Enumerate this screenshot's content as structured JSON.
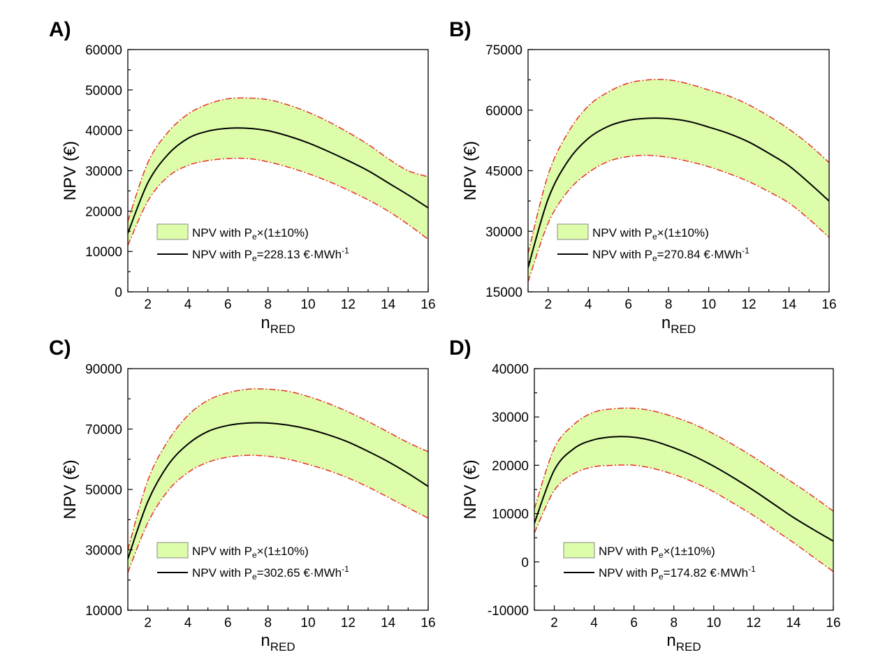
{
  "chart_data": [
    {
      "panel_label": "A)",
      "type": "line",
      "xlabel_main": "n",
      "xlabel_sub": "RED",
      "ylabel": "NPV (€)",
      "xlim": [
        1,
        16
      ],
      "ylim": [
        0,
        60000
      ],
      "xticks": [
        2,
        4,
        6,
        8,
        10,
        12,
        14,
        16
      ],
      "yticks": [
        0,
        10000,
        20000,
        30000,
        40000,
        50000,
        60000
      ],
      "x": [
        1,
        2,
        3,
        4,
        5,
        6,
        7,
        8,
        9,
        10,
        11,
        12,
        13,
        14,
        15,
        16
      ],
      "series": [
        {
          "name": "NPV with Pe=228.13 €·MWh-1",
          "values": [
            14500,
            27000,
            34000,
            38000,
            39800,
            40500,
            40500,
            39900,
            38600,
            36900,
            34800,
            32500,
            30000,
            27000,
            24000,
            20800
          ]
        },
        {
          "name": "upper",
          "values": [
            17500,
            32000,
            39500,
            44000,
            46500,
            47800,
            48000,
            47600,
            46300,
            44500,
            42200,
            39500,
            36500,
            33000,
            30000,
            28500
          ]
        },
        {
          "name": "lower",
          "values": [
            11500,
            22500,
            28500,
            31300,
            32500,
            33000,
            33000,
            32200,
            30900,
            29300,
            27400,
            25200,
            22800,
            20000,
            16700,
            13000
          ]
        }
      ],
      "legend": {
        "band_prefix": "NPV with P",
        "band_sub": "e",
        "band_suffix": "×(1±10%)",
        "line_prefix": "NPV with P",
        "line_sub": "e",
        "line_value": "=228.13 €·MWh",
        "line_sup": "-1"
      }
    },
    {
      "panel_label": "B)",
      "type": "line",
      "xlabel_main": "n",
      "xlabel_sub": "RED",
      "ylabel": "NPV (€)",
      "xlim": [
        1,
        16
      ],
      "ylim": [
        15000,
        75000
      ],
      "xticks": [
        2,
        4,
        6,
        8,
        10,
        12,
        14,
        16
      ],
      "yticks": [
        15000,
        30000,
        45000,
        60000,
        75000
      ],
      "x": [
        1,
        2,
        3,
        4,
        5,
        6,
        7,
        8,
        9,
        10,
        11,
        12,
        13,
        14,
        15,
        16
      ],
      "series": [
        {
          "name": "NPV with Pe=270.84 €·MWh-1",
          "values": [
            21000,
            38000,
            47500,
            53000,
            56000,
            57500,
            58000,
            57900,
            57200,
            55800,
            54200,
            52100,
            49300,
            46200,
            42000,
            37500
          ]
        },
        {
          "name": "upper",
          "values": [
            24500,
            44000,
            54500,
            61000,
            64500,
            66700,
            67500,
            67500,
            66500,
            65000,
            63500,
            61300,
            58500,
            55300,
            51500,
            47000
          ]
        },
        {
          "name": "lower",
          "values": [
            17500,
            32000,
            40000,
            44500,
            47300,
            48500,
            48800,
            48300,
            47300,
            46000,
            44300,
            42300,
            39800,
            37000,
            33000,
            28500
          ]
        }
      ],
      "legend": {
        "band_prefix": "NPV with P",
        "band_sub": "e",
        "band_suffix": "×(1±10%)",
        "line_prefix": "NPV with P",
        "line_sub": "e",
        "line_value": "=270.84 €·MWh",
        "line_sup": "-1"
      }
    },
    {
      "panel_label": "C)",
      "type": "line",
      "xlabel_main": "n",
      "xlabel_sub": "RED",
      "ylabel": "NPV (€)",
      "xlim": [
        1,
        16
      ],
      "ylim": [
        10000,
        90000
      ],
      "xticks": [
        2,
        4,
        6,
        8,
        10,
        12,
        14,
        16
      ],
      "yticks": [
        10000,
        30000,
        50000,
        70000,
        90000
      ],
      "x": [
        1,
        2,
        3,
        4,
        5,
        6,
        7,
        8,
        9,
        10,
        11,
        12,
        13,
        14,
        15,
        16
      ],
      "series": [
        {
          "name": "NPV with Pe=302.65 €·MWh-1",
          "values": [
            27000,
            46000,
            58000,
            65000,
            69200,
            71200,
            72000,
            72000,
            71300,
            70000,
            68100,
            65700,
            62600,
            59200,
            55300,
            51000
          ]
        },
        {
          "name": "upper",
          "values": [
            30000,
            53000,
            66000,
            74500,
            79500,
            82000,
            83200,
            83200,
            82500,
            80800,
            78500,
            75700,
            72500,
            69000,
            65500,
            62500
          ]
        },
        {
          "name": "lower",
          "values": [
            22500,
            39000,
            49500,
            55600,
            59000,
            60700,
            61300,
            61000,
            60000,
            58300,
            56300,
            53800,
            50800,
            47400,
            43900,
            40500
          ]
        }
      ],
      "legend": {
        "band_prefix": "NPV with P",
        "band_sub": "e",
        "band_suffix": "×(1±10%)",
        "line_prefix": "NPV with P",
        "line_sub": "e",
        "line_value": "=302.65 €·MWh",
        "line_sup": "-1"
      }
    },
    {
      "panel_label": "D)",
      "type": "line",
      "xlabel_main": "n",
      "xlabel_sub": "RED",
      "ylabel": "NPV (€)",
      "xlim": [
        1,
        16
      ],
      "ylim": [
        -10000,
        40000
      ],
      "xticks": [
        2,
        4,
        6,
        8,
        10,
        12,
        14,
        16
      ],
      "yticks": [
        -10000,
        0,
        10000,
        20000,
        30000,
        40000
      ],
      "x": [
        1,
        2,
        3,
        4,
        5,
        6,
        7,
        8,
        9,
        10,
        11,
        12,
        13,
        14,
        15,
        16
      ],
      "series": [
        {
          "name": "NPV with Pe=174.82 €·MWh-1",
          "values": [
            8000,
            19000,
            23500,
            25300,
            25900,
            25800,
            25000,
            23600,
            21900,
            19800,
            17400,
            14800,
            12000,
            9200,
            6700,
            4300
          ]
        },
        {
          "name": "upper",
          "values": [
            11000,
            23500,
            28500,
            31000,
            31700,
            31800,
            31200,
            30000,
            28500,
            26500,
            24200,
            21700,
            19000,
            16300,
            13500,
            10500
          ]
        },
        {
          "name": "lower",
          "values": [
            6000,
            14800,
            18300,
            19700,
            20000,
            20000,
            19300,
            18100,
            16500,
            14500,
            12100,
            9600,
            6800,
            4000,
            1000,
            -2000
          ]
        }
      ],
      "legend": {
        "band_prefix": "NPV with P",
        "band_sub": "e",
        "band_suffix": "×(1±10%)",
        "line_prefix": "NPV with P",
        "line_sub": "e",
        "line_value": "=174.82 €·MWh",
        "line_sup": "-1"
      }
    }
  ],
  "colors": {
    "band_fill": "#ddfdaa",
    "band_stroke": "#888888",
    "bound_line": "#e8302a",
    "main_line": "#000000"
  }
}
